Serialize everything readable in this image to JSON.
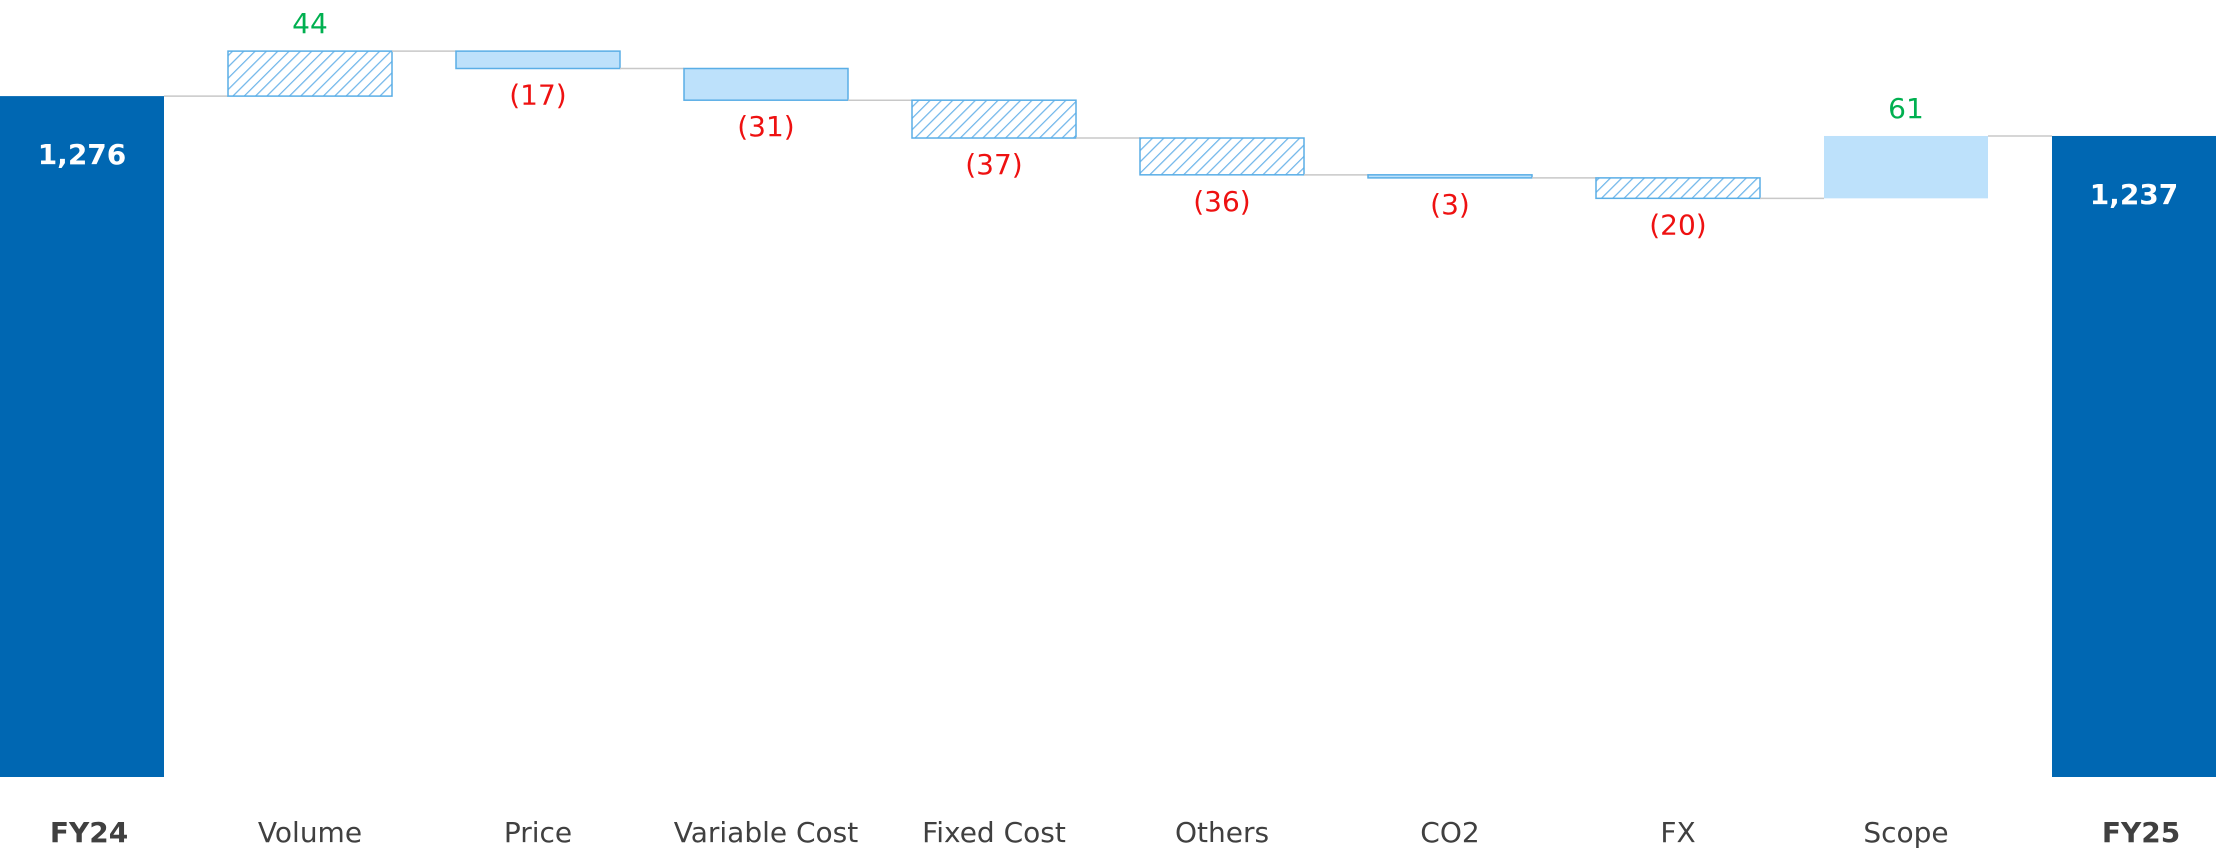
{
  "chart_data": {
    "type": "waterfall",
    "categories": [
      "FY24",
      "Volume",
      "Price",
      "Variable Cost",
      "Fixed Cost",
      "Others",
      "CO2",
      "FX",
      "Scope",
      "FY25"
    ],
    "values": [
      1276,
      44,
      -17,
      -31,
      -37,
      -36,
      -3,
      -20,
      61,
      1237
    ],
    "value_labels": [
      "1,276",
      "44",
      "(17)",
      "(31)",
      "(37)",
      "(36)",
      "(3)",
      "(20)",
      "61",
      "1,237"
    ],
    "kinds": [
      "total",
      "delta",
      "delta",
      "delta",
      "delta",
      "delta",
      "delta",
      "delta",
      "delta",
      "total"
    ],
    "hatched": [
      false,
      true,
      false,
      false,
      true,
      true,
      false,
      true,
      false,
      false
    ],
    "ylim": [
      610,
      1370
    ],
    "colors": {
      "total": "#0067b2",
      "delta": "#bde1fb",
      "delta_edge": "#5aaee6",
      "hatch": "#6fb6ea",
      "connector": "#c8c8c8",
      "increase_label": "#00b050",
      "decrease_label": "#ee1111",
      "total_label": "#ffffff",
      "category_label": "#404040"
    }
  }
}
